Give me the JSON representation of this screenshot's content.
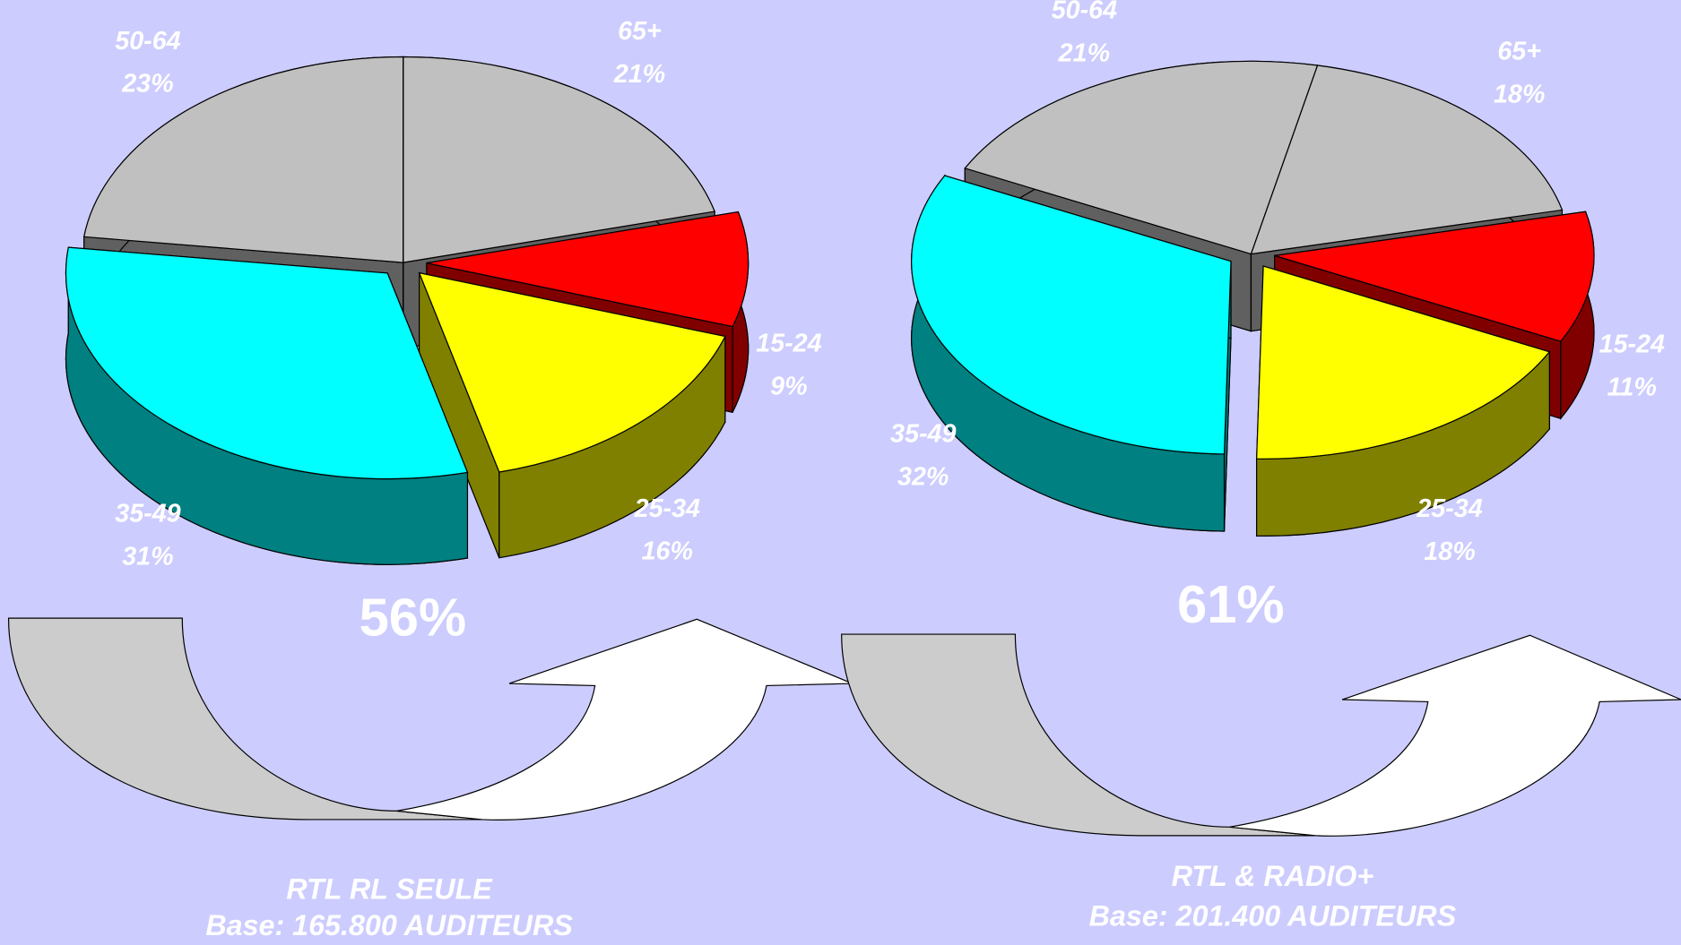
{
  "chart_data": [
    {
      "type": "pie",
      "categories": [
        "15-24",
        "25-34",
        "35-49",
        "50-64",
        "65+"
      ],
      "values": [
        9,
        16,
        31,
        23,
        21
      ],
      "value_labels": [
        "9%",
        "16%",
        "31%",
        "23%",
        "21%"
      ],
      "colors": [
        "#ff0000",
        "#ffff00",
        "#00ffff",
        "#c0c0c0",
        "#c0c0c0"
      ],
      "annotation": "56%",
      "title": "RTL RL SEULE",
      "subtitle": "Base: 165.800 AUDITEURS"
    },
    {
      "type": "pie",
      "categories": [
        "15-24",
        "25-34",
        "35-49",
        "50-64",
        "65+"
      ],
      "values": [
        11,
        18,
        32,
        21,
        18
      ],
      "value_labels": [
        "11%",
        "18%",
        "32%",
        "21%",
        "18%"
      ],
      "colors": [
        "#ff0000",
        "#ffff00",
        "#00ffff",
        "#c0c0c0",
        "#c0c0c0"
      ],
      "annotation": "61%",
      "title": "RTL & RADIO+",
      "subtitle": "Base: 201.400 AUDITEURS"
    }
  ]
}
